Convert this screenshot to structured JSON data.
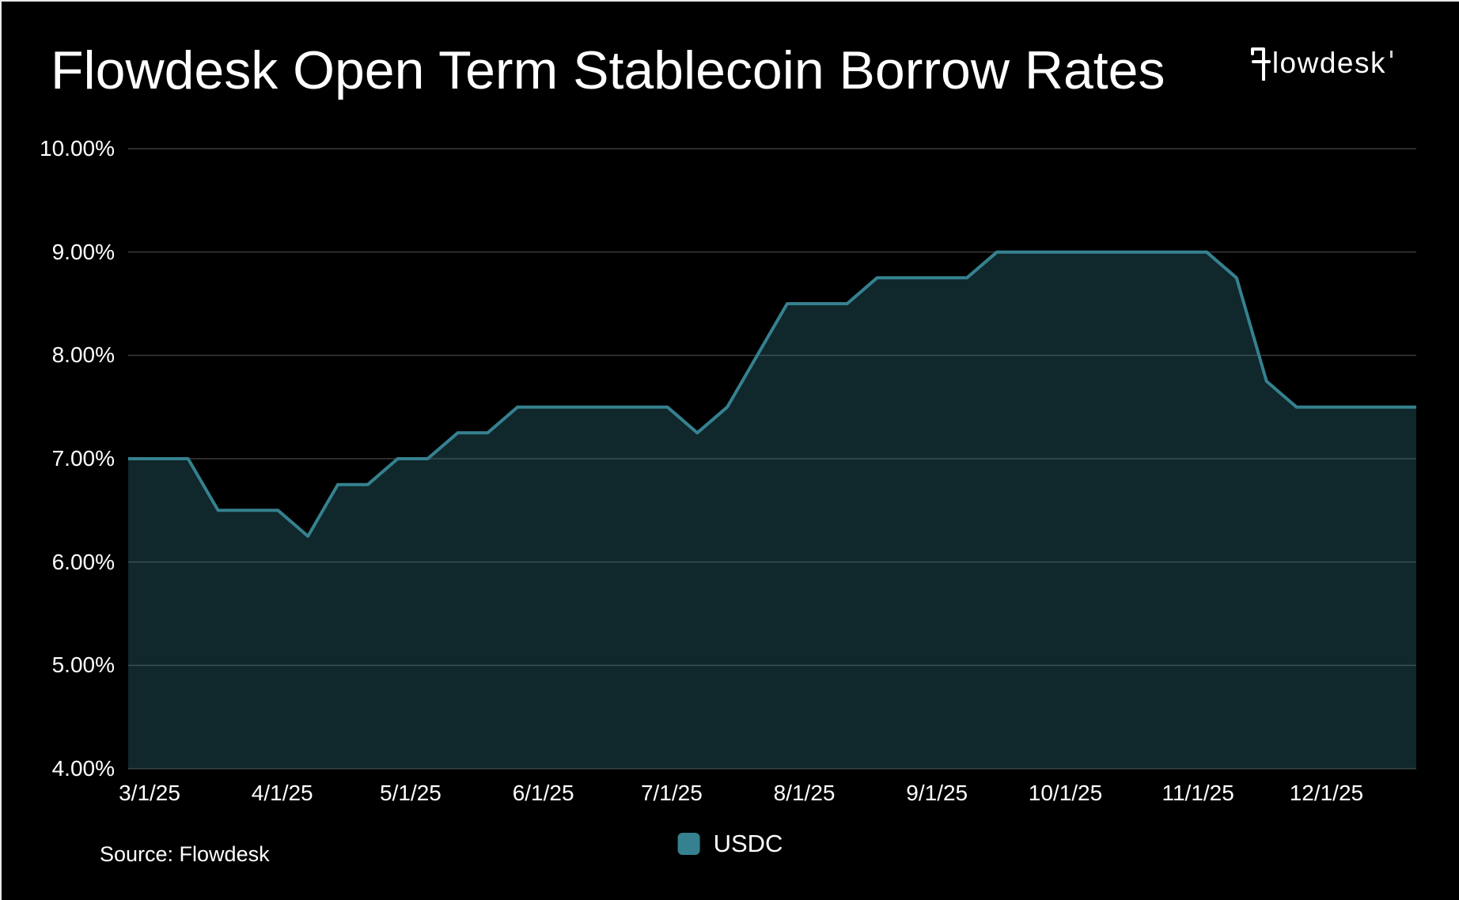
{
  "page": {
    "title": "Flowdesk Open Term Stablecoin Borrow Rates",
    "logo": {
      "text": "flowdesk",
      "text_after_f": "lowdesk",
      "f_icon": "flowdesk-f-icon"
    },
    "source_note": "Source: Flowdesk"
  },
  "legend": {
    "position": "bottom-center",
    "items": [
      {
        "label": "USDC",
        "color": "#35818F"
      }
    ]
  },
  "colors": {
    "background": "#000000",
    "text": "#FFFFFF",
    "gridline": "#3A3A3A",
    "line": "#35818F",
    "area_fill": "rgba(53,129,143,0.30)",
    "frame_edge": "#E8E8E8"
  },
  "chart_data": {
    "type": "area",
    "title": "Flowdesk Open Term Stablecoin Borrow Rates",
    "x_dates": [
      "2/24/25",
      "3/3/25",
      "3/10/25",
      "3/17/25",
      "3/24/25",
      "3/31/25",
      "4/7/25",
      "4/14/25",
      "4/21/25",
      "4/28/25",
      "5/5/25",
      "5/12/25",
      "5/19/25",
      "5/26/25",
      "6/2/25",
      "6/9/25",
      "6/16/25",
      "6/23/25",
      "6/30/25",
      "7/7/25",
      "7/14/25",
      "7/21/25",
      "7/28/25",
      "8/4/25",
      "8/11/25",
      "8/18/25",
      "8/25/25",
      "9/1/25",
      "9/8/25",
      "9/15/25",
      "9/22/25",
      "9/29/25",
      "10/6/25",
      "10/13/25",
      "10/20/25",
      "10/27/25",
      "11/3/25",
      "11/10/25",
      "11/17/25",
      "11/24/25",
      "12/1/25",
      "12/8/25",
      "12/15/25",
      "12/22/25"
    ],
    "series": [
      {
        "name": "USDC",
        "color": "#35818F",
        "values": [
          7.0,
          7.0,
          7.0,
          6.5,
          6.5,
          6.5,
          6.25,
          6.75,
          6.75,
          7.0,
          7.0,
          7.25,
          7.25,
          7.5,
          7.5,
          7.5,
          7.5,
          7.5,
          7.5,
          7.25,
          7.5,
          8.0,
          8.5,
          8.5,
          8.5,
          8.75,
          8.75,
          8.75,
          8.75,
          9.0,
          9.0,
          9.0,
          9.0,
          9.0,
          9.0,
          9.0,
          9.0,
          8.75,
          7.75,
          7.5,
          7.5,
          7.5,
          7.5,
          7.5
        ]
      }
    ],
    "ylim": [
      4,
      10
    ],
    "ytick_labels": [
      "4.00%",
      "5.00%",
      "6.00%",
      "7.00%",
      "8.00%",
      "9.00%",
      "10.00%"
    ],
    "xtick_labels": [
      "3/1/25",
      "4/1/25",
      "5/1/25",
      "6/1/25",
      "7/1/25",
      "8/1/25",
      "9/1/25",
      "10/1/25",
      "11/1/25",
      "12/1/25"
    ],
    "grid": "horizontal-only",
    "legend_position": "bottom-center"
  }
}
